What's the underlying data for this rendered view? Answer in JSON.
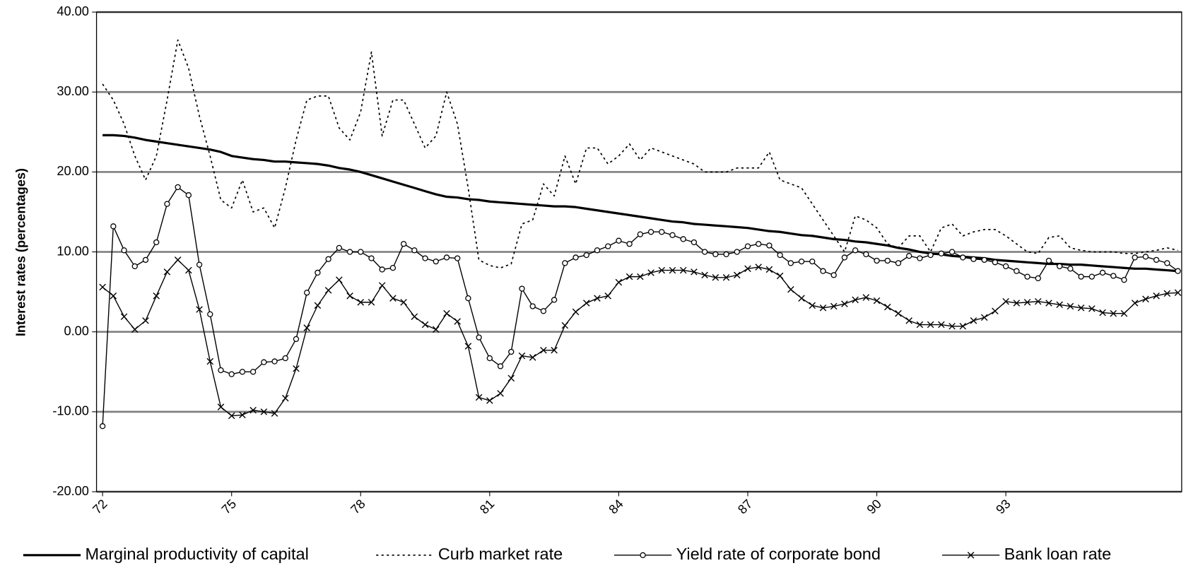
{
  "chart_data": {
    "type": "line",
    "y_label": "Interest rates (percentages)",
    "ylim": [
      -20,
      40
    ],
    "yticks": [
      {
        "value": -20,
        "label": "-20.00"
      },
      {
        "value": -10,
        "label": "-10.00"
      },
      {
        "value": 0,
        "label": "0.00"
      },
      {
        "value": 10,
        "label": "10.00"
      },
      {
        "value": 20,
        "label": "20.00"
      },
      {
        "value": 30,
        "label": "30.00"
      },
      {
        "value": 40,
        "label": "40.00"
      }
    ],
    "grid": true,
    "legend": "bottom",
    "categories": [
      "72",
      null,
      null,
      null,
      null,
      null,
      null,
      null,
      null,
      null,
      null,
      null,
      "75",
      null,
      null,
      null,
      null,
      null,
      null,
      null,
      null,
      null,
      null,
      null,
      "78",
      null,
      null,
      null,
      null,
      null,
      null,
      null,
      null,
      null,
      null,
      null,
      "81",
      null,
      null,
      null,
      null,
      null,
      null,
      null,
      null,
      null,
      null,
      null,
      "84",
      null,
      null,
      null,
      null,
      null,
      null,
      null,
      null,
      null,
      null,
      null,
      "87",
      null,
      null,
      null,
      null,
      null,
      null,
      null,
      null,
      null,
      null,
      null,
      "90",
      null,
      null,
      null,
      null,
      null,
      null,
      null,
      null,
      null,
      null,
      null,
      "93",
      null,
      null,
      null,
      null,
      null,
      null,
      null,
      null,
      null,
      null,
      null,
      null,
      null,
      null,
      null,
      null
    ],
    "series": [
      {
        "name": "Marginal productivity of capital",
        "color": "#000000",
        "line_style": "solid",
        "line_width": 3,
        "marker": "none",
        "values": [
          24.6,
          24.6,
          24.5,
          24.3,
          24.0,
          23.8,
          23.6,
          23.4,
          23.2,
          23.0,
          22.8,
          22.5,
          22.0,
          21.8,
          21.6,
          21.5,
          21.3,
          21.3,
          21.2,
          21.1,
          21.0,
          20.8,
          20.5,
          20.3,
          20.0,
          19.6,
          19.2,
          18.8,
          18.4,
          18.0,
          17.6,
          17.2,
          16.9,
          16.8,
          16.6,
          16.5,
          16.3,
          16.2,
          16.1,
          16.0,
          15.9,
          15.8,
          15.7,
          15.7,
          15.6,
          15.4,
          15.2,
          15.0,
          14.8,
          14.6,
          14.4,
          14.2,
          14.0,
          13.8,
          13.7,
          13.5,
          13.4,
          13.3,
          13.2,
          13.1,
          13.0,
          12.8,
          12.6,
          12.5,
          12.3,
          12.1,
          12.0,
          11.8,
          11.6,
          11.5,
          11.3,
          11.2,
          11.0,
          10.8,
          10.5,
          10.3,
          10.0,
          9.8,
          9.7,
          9.5,
          9.4,
          9.3,
          9.2,
          9.0,
          8.9,
          8.8,
          8.7,
          8.6,
          8.5,
          8.5,
          8.4,
          8.4,
          8.3,
          8.2,
          8.1,
          8.0,
          7.9,
          7.9,
          7.8,
          7.7,
          7.6
        ]
      },
      {
        "name": "Curb market rate",
        "color": "#000000",
        "line_style": "dotted",
        "line_width": 1.6,
        "marker": "none",
        "values": [
          31,
          29,
          26,
          22,
          19,
          22,
          29,
          36.5,
          33,
          27,
          22,
          16.5,
          15.5,
          19,
          15,
          15.5,
          13,
          18,
          24,
          29,
          29.5,
          29.5,
          25.5,
          24,
          27.5,
          35,
          24.5,
          29,
          29,
          26,
          23,
          24.5,
          30,
          26,
          18,
          9,
          8.3,
          8,
          8.5,
          13.5,
          14,
          18.5,
          17,
          22,
          18.5,
          23,
          23,
          21,
          22,
          23.5,
          21.5,
          23,
          22.5,
          22,
          21.5,
          21,
          20,
          20,
          20,
          20.5,
          20.5,
          20.5,
          22.5,
          19,
          18.5,
          18,
          16,
          14,
          12,
          10,
          14.5,
          14,
          13,
          11,
          10.5,
          12,
          12,
          10,
          13,
          13.5,
          12,
          12.5,
          12.8,
          12.8,
          12,
          11,
          10,
          9.8,
          11.8,
          12,
          10.5,
          10.2,
          10,
          10,
          10,
          9.8,
          9.8,
          10,
          10.2,
          10.5,
          10.2
        ]
      },
      {
        "name": "Yield rate of corporate bond",
        "color": "#000000",
        "line_style": "solid",
        "line_width": 1.3,
        "marker": "circle",
        "values": [
          -11.8,
          13.2,
          10.2,
          8.2,
          9,
          11.2,
          16,
          18.1,
          17.1,
          8.4,
          2.2,
          -4.8,
          -5.3,
          -5,
          -5,
          -3.8,
          -3.7,
          -3.3,
          -0.9,
          4.9,
          7.4,
          9.1,
          10.5,
          10,
          10,
          9.2,
          7.8,
          8,
          11,
          10.2,
          9.2,
          8.8,
          9.3,
          9.2,
          4.2,
          -0.7,
          -3.3,
          -4.3,
          -2.5,
          5.4,
          3.2,
          2.6,
          4,
          8.6,
          9.3,
          9.6,
          10.2,
          10.7,
          11.4,
          11,
          12.2,
          12.5,
          12.5,
          12.1,
          11.6,
          11.2,
          10,
          9.7,
          9.7,
          10,
          10.7,
          11,
          10.8,
          9.6,
          8.6,
          8.8,
          8.8,
          7.6,
          7.1,
          9.3,
          10.2,
          9.7,
          8.9,
          8.9,
          8.6,
          9.5,
          9.2,
          9.6,
          9.8,
          10,
          9.3,
          9.1,
          9,
          8.7,
          8.2,
          7.6,
          6.9,
          6.7,
          8.9,
          8.2,
          7.9,
          6.9,
          6.9,
          7.4,
          7.0,
          6.5,
          9.3,
          9.4,
          9.0,
          8.6,
          7.6
        ]
      },
      {
        "name": "Bank loan rate",
        "color": "#000000",
        "line_style": "solid",
        "line_width": 1.3,
        "marker": "x",
        "values": [
          5.6,
          4.5,
          1.9,
          0.3,
          1.4,
          4.5,
          7.5,
          9,
          7.7,
          2.8,
          -3.7,
          -9.4,
          -10.5,
          -10.4,
          -9.8,
          -10,
          -10.2,
          -8.3,
          -4.6,
          0.5,
          3.3,
          5.2,
          6.5,
          4.5,
          3.7,
          3.7,
          5.8,
          4.2,
          3.7,
          1.9,
          0.9,
          0.3,
          2.3,
          1.3,
          -1.8,
          -8.2,
          -8.6,
          -7.7,
          -5.8,
          -3,
          -3.2,
          -2.3,
          -2.3,
          0.8,
          2.5,
          3.6,
          4.2,
          4.5,
          6.2,
          6.9,
          6.9,
          7.4,
          7.7,
          7.7,
          7.7,
          7.5,
          7.1,
          6.8,
          6.8,
          7.1,
          7.9,
          8.1,
          7.8,
          7,
          5.3,
          4.2,
          3.3,
          3,
          3.2,
          3.5,
          4,
          4.3,
          3.9,
          3.1,
          2.3,
          1.4,
          0.9,
          0.9,
          0.9,
          0.7,
          0.7,
          1.4,
          1.8,
          2.6,
          3.8,
          3.6,
          3.7,
          3.8,
          3.6,
          3.4,
          3.2,
          3.0,
          2.9,
          2.4,
          2.3,
          2.3,
          3.6,
          4.1,
          4.5,
          4.8,
          4.9
        ]
      }
    ]
  }
}
